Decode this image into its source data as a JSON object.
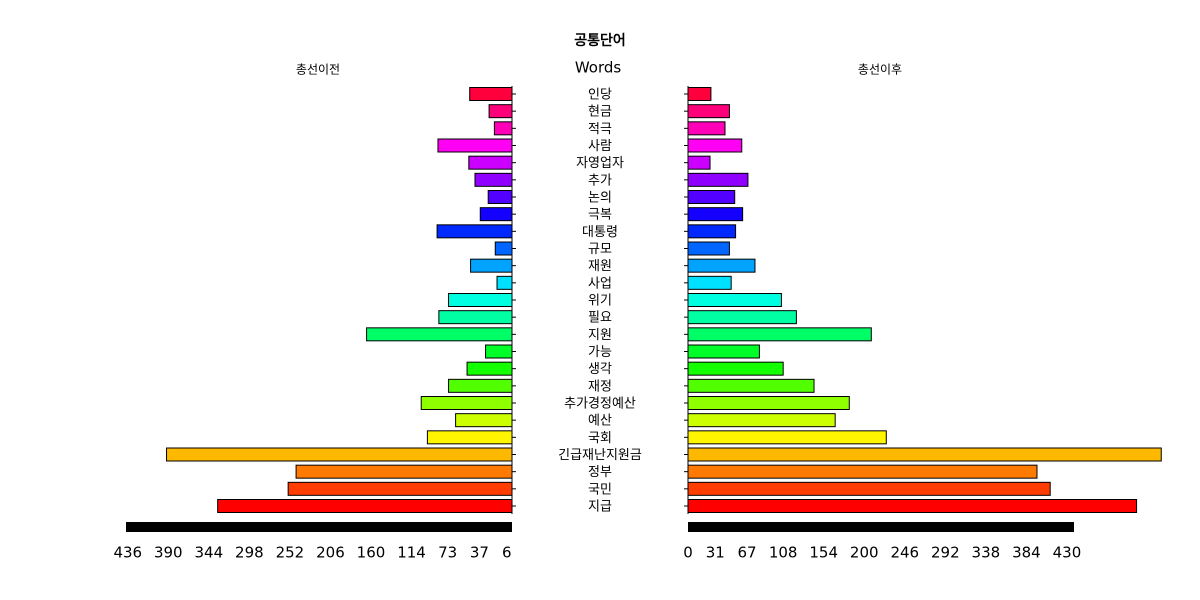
{
  "chart_data": {
    "type": "pyramid",
    "title": "공통단어",
    "center_label": "Words",
    "categories": [
      "인당",
      "현금",
      "적극",
      "사람",
      "자영업자",
      "추가",
      "논의",
      "극복",
      "대통령",
      "규모",
      "재원",
      "사업",
      "위기",
      "필요",
      "지원",
      "가능",
      "생각",
      "재정",
      "추가경정예산",
      "예산",
      "국회",
      "긴급재난지원금",
      "정부",
      "국민",
      "지급"
    ],
    "colors": [
      "#FF003D",
      "#FF007A",
      "#FF00B8",
      "#FF00F5",
      "#CC00FF",
      "#8F00FF",
      "#5200FF",
      "#1400FF",
      "#0029FF",
      "#0066FF",
      "#00A3FF",
      "#00E0FF",
      "#00FFE0",
      "#00FFA3",
      "#00FF66",
      "#00FF29",
      "#14FF00",
      "#52FF00",
      "#8FFF00",
      "#CCFF00",
      "#FFF500",
      "#FFB800",
      "#FF7A00",
      "#FF3D00",
      "#FF0000"
    ],
    "series": [
      {
        "name": "총선이전",
        "values": [
          48,
          26,
          20,
          84,
          49,
          42,
          27,
          36,
          85,
          19,
          47,
          17,
          72,
          83,
          165,
          30,
          51,
          72,
          103,
          64,
          96,
          392,
          245,
          254,
          334
        ]
      },
      {
        "name": "총선이후",
        "values": [
          26,
          47,
          42,
          61,
          25,
          68,
          53,
          62,
          54,
          47,
          76,
          49,
          106,
          123,
          208,
          81,
          108,
          143,
          183,
          167,
          225,
          537,
          396,
          411,
          509
        ]
      }
    ],
    "xlim": [
      0,
      438
    ],
    "xticks_left": [
      6,
      37,
      73,
      114,
      160,
      206,
      252,
      298,
      344,
      390,
      436
    ],
    "xticks_right": [
      0,
      31,
      67,
      108,
      154,
      200,
      246,
      292,
      338,
      384,
      430
    ]
  }
}
